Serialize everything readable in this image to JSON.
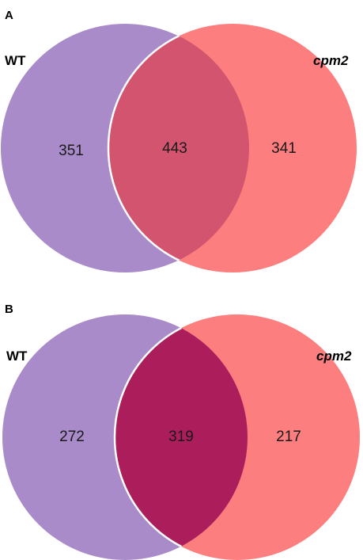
{
  "colors": {
    "left_circle": "#a98bc9",
    "right_circle": "#fd7e7e",
    "overlap_a": "#d3546f",
    "overlap_b": "#ac1d5c",
    "outline": "#ffffff"
  },
  "panels": [
    {
      "letter": "A",
      "left_label": "WT",
      "right_label": "cpm2",
      "left_only": "351",
      "overlap": "443",
      "right_only": "341"
    },
    {
      "letter": "B",
      "left_label": "WT",
      "right_label": "cpm2",
      "left_only": "272",
      "overlap": "319",
      "right_only": "217"
    }
  ]
}
